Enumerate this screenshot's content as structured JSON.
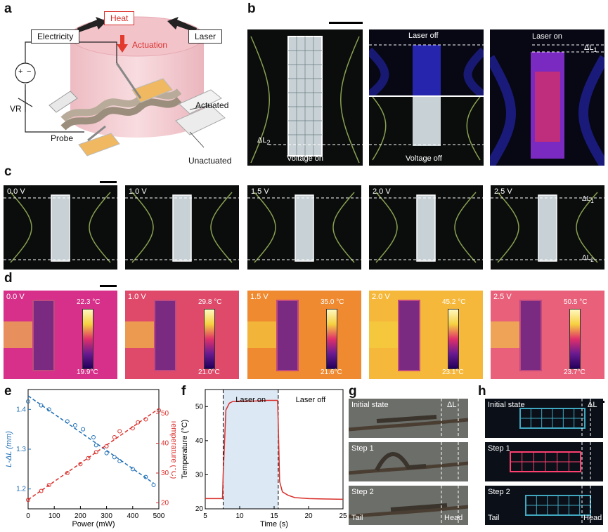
{
  "panels": {
    "a": "a",
    "b": "b",
    "c": "c",
    "d": "d",
    "e": "e",
    "f": "f",
    "g": "g",
    "h": "h"
  },
  "a": {
    "heat": "Heat",
    "electricity": "Electricity",
    "laser": "Laser",
    "actuation": "Actuation",
    "vr": "VR",
    "probe": "Probe",
    "actuated": "Actuated",
    "unactuated": "Unactuated",
    "plus": "+",
    "minus": "−"
  },
  "b": {
    "voltage_on": "Voltage on",
    "laser_off": "Laser off",
    "voltage_off": "Voltage off",
    "laser_on": "Laser on",
    "dl1": "ΔL",
    "dl1_sub": "1",
    "dl2": "ΔL",
    "dl2_sub": "2"
  },
  "c": {
    "voltages": [
      "0.0 V",
      "1.0 V",
      "1.5 V",
      "2.0 V",
      "2.5 V"
    ],
    "dl1": "ΔL",
    "dl1_sub": "1",
    "dl2": "ΔL",
    "dl2_sub": "2"
  },
  "d": {
    "voltages": [
      "0.0 V",
      "1.0 V",
      "1.5 V",
      "2.0 V",
      "2.5 V"
    ],
    "tmax": [
      "22.3 °C",
      "29.8 °C",
      "35.0 °C",
      "45.2 °C",
      "50.5 °C"
    ],
    "tmin": [
      "19.9°C",
      "21.0°C",
      "21.6°C",
      "23.1°C",
      "23.7°C"
    ]
  },
  "g": {
    "initial": "Initial state",
    "step1": "Step 1",
    "step2": "Step 2",
    "dl": "ΔL",
    "tail": "Tail",
    "head": "Head"
  },
  "h": {
    "initial": "Initial state",
    "step1": "Step 1",
    "step2": "Step 2",
    "dl": "ΔL",
    "tail": "Tail",
    "head": "Head"
  },
  "chart_data": [
    {
      "id": "e",
      "type": "scatter",
      "xlabel": "Power (mW)",
      "ylabel_left": "L-ΔL (mm)",
      "ylabel_right": "Temperature (°C)",
      "xlim": [
        0,
        500
      ],
      "ylim_left": [
        1.15,
        1.45
      ],
      "ylim_right": [
        18,
        58
      ],
      "xticks": [
        0,
        100,
        200,
        300,
        400,
        500
      ],
      "yticks_left": [
        1.2,
        1.3,
        1.4
      ],
      "yticks_right": [
        20,
        30,
        40,
        50
      ],
      "series": [
        {
          "axis": "left",
          "color": "#1f6fb5",
          "x": [
            0,
            50,
            80,
            150,
            180,
            210,
            250,
            260,
            300,
            330,
            350,
            400,
            450,
            480
          ],
          "y": [
            1.42,
            1.41,
            1.4,
            1.37,
            1.36,
            1.35,
            1.33,
            1.31,
            1.29,
            1.28,
            1.27,
            1.25,
            1.23,
            1.21
          ]
        },
        {
          "axis": "right",
          "color": "#d9302c",
          "x": [
            0,
            50,
            80,
            150,
            200,
            230,
            260,
            300,
            330,
            350,
            400,
            420,
            450,
            500
          ],
          "y": [
            21,
            24,
            26,
            30,
            33,
            35,
            37,
            39,
            42,
            44,
            45,
            47,
            48,
            51
          ]
        }
      ]
    },
    {
      "id": "f",
      "type": "line",
      "xlabel": "Time (s)",
      "ylabel": "Temperature (°C)",
      "xlim": [
        5,
        25
      ],
      "ylim": [
        20,
        55
      ],
      "xticks": [
        5,
        10,
        15,
        20,
        25
      ],
      "yticks": [
        20,
        30,
        40,
        50
      ],
      "annotations": [
        "Laser on",
        "Laser off"
      ],
      "shaded": [
        7.6,
        15.6
      ],
      "color": "#d9302c",
      "x": [
        5,
        7.5,
        7.6,
        8,
        8.5,
        9,
        10,
        12,
        14,
        15.5,
        15.6,
        15.8,
        16.2,
        17,
        18,
        20,
        22,
        25
      ],
      "y": [
        23,
        23,
        30,
        49,
        51,
        51.5,
        51.6,
        51.6,
        51.8,
        51.8,
        45,
        28,
        25,
        24,
        23.3,
        23,
        22.9,
        22.8
      ]
    }
  ]
}
